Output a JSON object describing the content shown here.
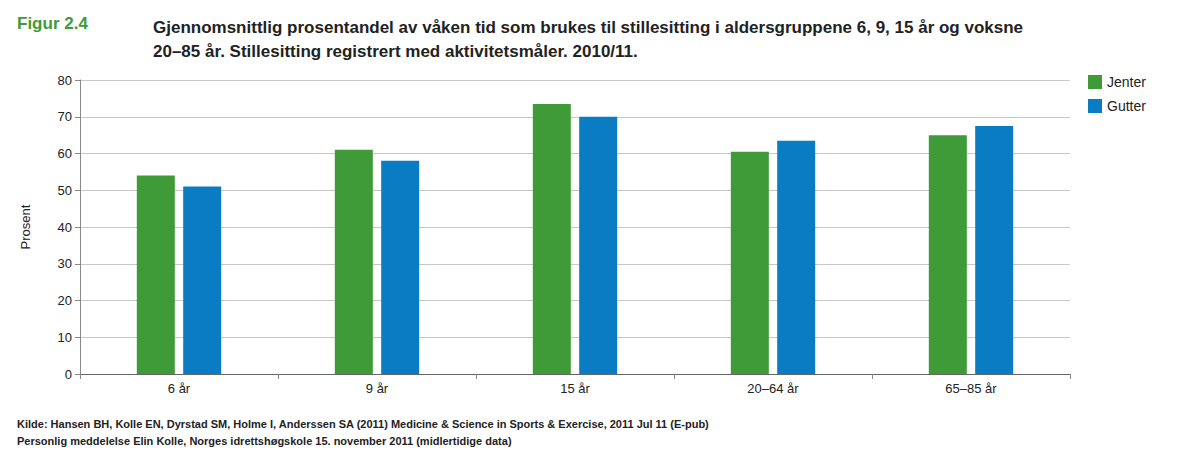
{
  "chart_data": {
    "type": "bar",
    "title": "Gjennomsnittlig prosentandel av våken tid som brukes til stillesitting i aldersgruppene 6, 9, 15 år og voksne 20–85 år. Stillesitting registrert med aktivitetsmåler. 2010/11.",
    "annotations": [
      "Figur 2.4",
      "Kilde: Hansen BH, Kolle EN, Dyrstad SM, Holme I, Anderssen SA (2011) Medicine & Science in Sports & Exercise, 2011 Jul 11 (E-pub)",
      "Personlig meddelelse Elin Kolle, Norges idrettshøgskole 15. november 2011 (midlertidige data)"
    ],
    "y_label": "Prosent",
    "categories": [
      "6 år",
      "9 år",
      "15 år",
      "20–64 år",
      "65–85 år"
    ],
    "series": [
      {
        "name": "Jenter",
        "color": "#3f9a38",
        "values": [
          54,
          61,
          73.5,
          60.5,
          65
        ]
      },
      {
        "name": "Gutter",
        "color": "#0a7cc4",
        "values": [
          51,
          58,
          70,
          63.5,
          67.5
        ]
      }
    ],
    "ylim": [
      0,
      80
    ],
    "yticks": [
      0,
      10,
      20,
      30,
      40,
      50,
      60,
      70,
      80
    ],
    "grid": true,
    "legend": "top-right"
  }
}
